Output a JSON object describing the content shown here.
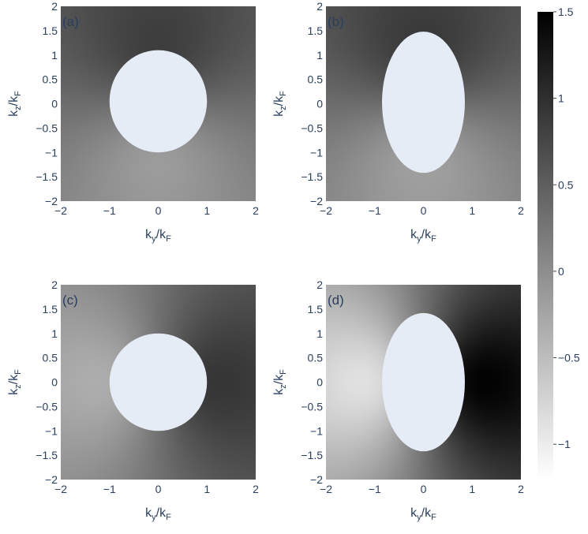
{
  "chart_data": {
    "type": "heatmap",
    "colorscale": {
      "colors": [
        "#ffffff",
        "#000000"
      ],
      "range": [
        -1.2,
        1.5
      ],
      "ticks": [
        "1.5",
        "1",
        "0.5",
        "0",
        "−0.5",
        "−1"
      ],
      "tick_values": [
        1.5,
        1,
        0.5,
        0,
        -0.5,
        -1
      ]
    },
    "excluded_region_color": "#e5ecf6",
    "panels": [
      {
        "label": "(a)",
        "xlabel": {
          "main": "k",
          "sub_1": "y",
          "mid": "/k",
          "sub_2": "F"
        },
        "ylabel": {
          "main": "k",
          "sub_1": "z",
          "mid": "/k",
          "sub_2": "F"
        },
        "x_range": [
          -2,
          2
        ],
        "y_range": [
          -2,
          2
        ],
        "x_ticks": [
          "−2",
          "−1",
          "0",
          "1",
          "2"
        ],
        "y_ticks": [
          "2",
          "1.5",
          "1",
          "0.5",
          "0",
          "−0.5",
          "−1",
          "−1.5",
          "−2"
        ],
        "ellipse": {
          "ky_semi_axis": 1.0,
          "kz_semi_axis": 1.05,
          "kz_center": 0.05
        },
        "field": {
          "base": 0.35,
          "ky_amp": 0.0,
          "kz_amp": 0.55
        }
      },
      {
        "label": "(b)",
        "xlabel": {
          "main": "k",
          "sub_1": "y",
          "mid": "/k",
          "sub_2": "F"
        },
        "ylabel": {
          "main": "k",
          "sub_1": "z",
          "mid": "/k",
          "sub_2": "F"
        },
        "x_range": [
          -2,
          2
        ],
        "y_range": [
          -2,
          2
        ],
        "x_ticks": [
          "−2",
          "−1",
          "0",
          "1",
          "2"
        ],
        "y_ticks": [
          "2",
          "1.5",
          "1",
          "0.5",
          "0",
          "−0.5",
          "−1",
          "−1.5",
          "−2"
        ],
        "ellipse": {
          "ky_semi_axis": 0.85,
          "kz_semi_axis": 1.45,
          "kz_center": 0.03
        },
        "field": {
          "base": 0.35,
          "ky_amp": 0.0,
          "kz_amp": 0.6
        }
      },
      {
        "label": "(c)",
        "xlabel": {
          "main": "k",
          "sub_1": "y",
          "mid": "/k",
          "sub_2": "F"
        },
        "ylabel": {
          "main": "k",
          "sub_1": "z",
          "mid": "/k",
          "sub_2": "F"
        },
        "x_range": [
          -2,
          2
        ],
        "y_range": [
          -2,
          2
        ],
        "x_ticks": [
          "−2",
          "−1",
          "0",
          "1",
          "2"
        ],
        "y_ticks": [
          "2",
          "1.5",
          "1",
          "0.5",
          "0",
          "−0.5",
          "−1",
          "−1.5",
          "−2"
        ],
        "ellipse": {
          "ky_semi_axis": 1.0,
          "kz_semi_axis": 1.0,
          "kz_center": 0.0
        },
        "field": {
          "base": 0.3,
          "ky_amp": 0.7,
          "kz_amp": 0.0
        }
      },
      {
        "label": "(d)",
        "xlabel": {
          "main": "k",
          "sub_1": "y",
          "mid": "/k",
          "sub_2": "F"
        },
        "ylabel": {
          "main": "k",
          "sub_1": "z",
          "mid": "/k",
          "sub_2": "F"
        },
        "x_range": [
          -2,
          2
        ],
        "y_range": [
          -2,
          2
        ],
        "x_ticks": [
          "−2",
          "−1",
          "0",
          "1",
          "2"
        ],
        "y_ticks": [
          "2",
          "1.5",
          "1",
          "0.5",
          "0",
          "−0.5",
          "−1",
          "−1.5",
          "−2"
        ],
        "ellipse": {
          "ky_semi_axis": 0.85,
          "kz_semi_axis": 1.42,
          "kz_center": 0.0
        },
        "field": {
          "base": 0.3,
          "ky_amp": 1.3,
          "kz_amp": 0.0
        }
      }
    ]
  }
}
